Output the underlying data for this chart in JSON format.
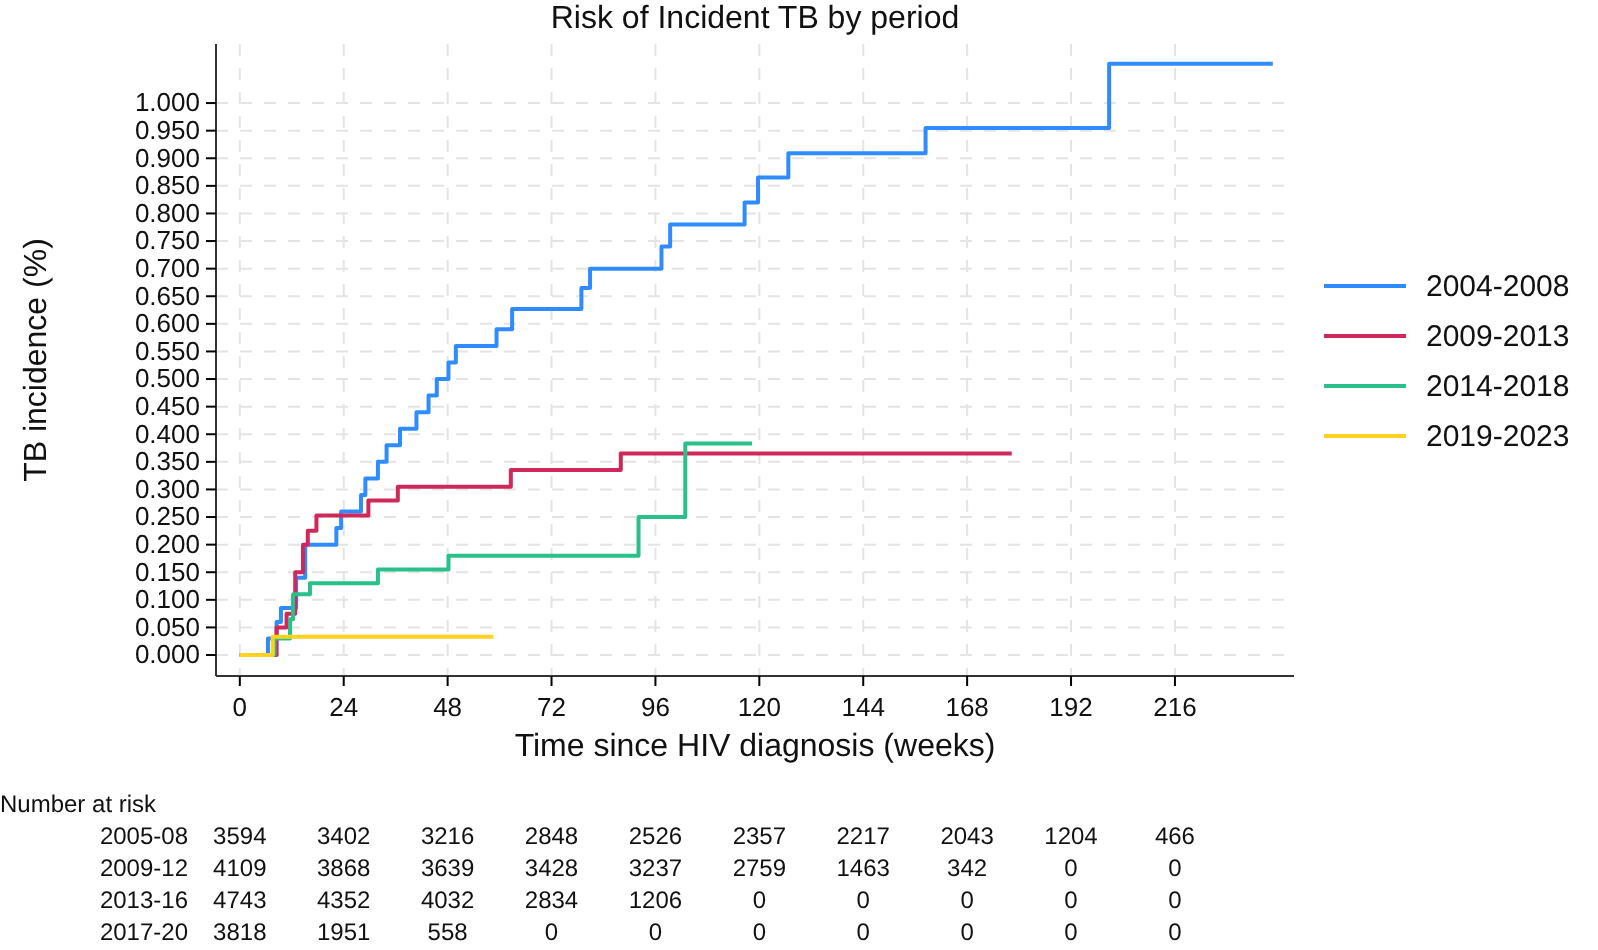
{
  "chart_data": {
    "type": "step",
    "title": "Risk of Incident TB by period",
    "xlabel": "Time since HIV diagnosis (weeks)",
    "ylabel": "TB incidence (%)",
    "xlim": [
      -5.5,
      243.5
    ],
    "xticks": [
      0,
      24,
      48,
      72,
      96,
      120,
      144,
      168,
      192,
      216
    ],
    "ylim": [
      -0.038,
      1.107
    ],
    "yticks": [
      {
        "value": 0,
        "label": "0.000"
      },
      {
        "value": 0.05,
        "label": "0.050"
      },
      {
        "value": 0.1,
        "label": "0.100"
      },
      {
        "value": 0.15,
        "label": "0.150"
      },
      {
        "value": 0.2,
        "label": "0.200"
      },
      {
        "value": 0.25,
        "label": "0.250"
      },
      {
        "value": 0.3,
        "label": "0.300"
      },
      {
        "value": 0.35,
        "label": "0.350"
      },
      {
        "value": 0.4,
        "label": "0.400"
      },
      {
        "value": 0.45,
        "label": "0.450"
      },
      {
        "value": 0.5,
        "label": "0.500"
      },
      {
        "value": 0.55,
        "label": "0.550"
      },
      {
        "value": 0.6,
        "label": "0.600"
      },
      {
        "value": 0.65,
        "label": "0.650"
      },
      {
        "value": 0.7,
        "label": "0.700"
      },
      {
        "value": 0.75,
        "label": "0.750"
      },
      {
        "value": 0.8,
        "label": "0.800"
      },
      {
        "value": 0.85,
        "label": "0.850"
      },
      {
        "value": 0.9,
        "label": "0.900"
      },
      {
        "value": 0.95,
        "label": "0.950"
      },
      {
        "value": 1,
        "label": "1.000"
      }
    ],
    "grid": true,
    "legend": "right",
    "line_style": "solid",
    "series": [
      {
        "name": "2004-2008",
        "color": "#2f8cff",
        "x": [
          0,
          6.5,
          8.5,
          9.5,
          13,
          15.1,
          22.3,
          23.4,
          28,
          29,
          31.9,
          33.9,
          37,
          40.8,
          43.6,
          45.5,
          48.2,
          49.9,
          59.3,
          62.9,
          78.9,
          80.9,
          97.4,
          99.4,
          116.6,
          119.7,
          126.7,
          158.4,
          200.8,
          238.6
        ],
        "values": [
          0,
          0.03,
          0.06,
          0.085,
          0.14,
          0.2,
          0.23,
          0.26,
          0.29,
          0.32,
          0.35,
          0.38,
          0.41,
          0.44,
          0.47,
          0.5,
          0.53,
          0.56,
          0.59,
          0.627,
          0.665,
          0.7,
          0.74,
          0.78,
          0.82,
          0.865,
          0.909,
          0.955,
          1.071,
          1.071
        ]
      },
      {
        "name": "2009-2013",
        "color": "#d0285a",
        "x": [
          0,
          8.5,
          10.8,
          12.8,
          14.6,
          15.7,
          17.7,
          29.7,
          36.5,
          62.6,
          88,
          178.3
        ],
        "values": [
          0,
          0.05,
          0.075,
          0.15,
          0.2,
          0.225,
          0.253,
          0.28,
          0.305,
          0.335,
          0.365,
          0.365
        ]
      },
      {
        "name": "2014-2018",
        "color": "#29c08a",
        "x": [
          0,
          8,
          11.6,
          12.3,
          16.2,
          31.9,
          48.2,
          92.1,
          102.9,
          118.3
        ],
        "values": [
          0,
          0.03,
          0.065,
          0.11,
          0.13,
          0.155,
          0.18,
          0.25,
          0.383,
          0.383
        ]
      },
      {
        "name": "2019-2023",
        "color": "#ffd21f",
        "x": [
          0,
          7.6,
          58.6
        ],
        "values": [
          0,
          0.033,
          0.033
        ]
      }
    ],
    "annotations": [
      "Number at risk",
      "2005-08 3594 3402 3216 2848 2526 2357 2217 2043 1204 466",
      "2009-12 4109 3868 3639 3428 3237 2759 1463 342 0 0",
      "2013-16 4743 4352 4032 2834 1206 0 0 0 0 0",
      "2017-20 3818 1951 558 0 0 0 0 0 0 0"
    ]
  }
}
